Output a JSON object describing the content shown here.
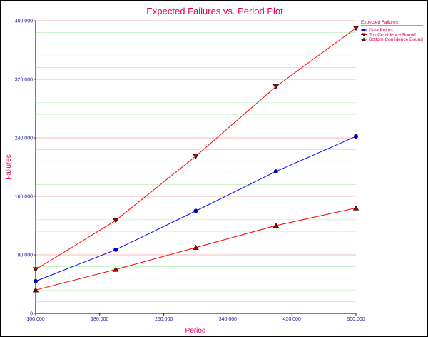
{
  "chart_data": {
    "type": "line",
    "title": "Expected Failures vs. Period Plot",
    "xlabel": "Period",
    "ylabel": "Failures",
    "xlim": [
      100,
      500
    ],
    "ylim": [
      0,
      400
    ],
    "x_ticks": [
      100,
      180,
      260,
      340,
      420,
      500
    ],
    "y_ticks": [
      0,
      80,
      160,
      240,
      320,
      400
    ],
    "x_tick_labels": [
      "100.000",
      "180.000",
      "260.000",
      "340.000",
      "420.000",
      "500.000"
    ],
    "y_tick_labels": [
      "0",
      "80.000",
      "160.000",
      "240.000",
      "320.000",
      "400.000"
    ],
    "grid": {
      "major": true,
      "minor": true,
      "major_color": "#f4a0a0",
      "minor_color": "#b8f0b8"
    },
    "legend": {
      "title": "Expected Failures",
      "position": "top-right",
      "entries": [
        "Data Points",
        "Top Confidence Bound",
        "Bottom Confidence Bound"
      ]
    },
    "series": [
      {
        "name": "Data Points",
        "marker": "circle",
        "color": "#0000ff",
        "marker_color": "#0000cc",
        "x": [
          100,
          200,
          300,
          400,
          500
        ],
        "y": [
          44,
          87,
          140,
          194,
          242
        ]
      },
      {
        "name": "Top Confidence Bound",
        "marker": "triangle-down",
        "color": "#ff0000",
        "marker_color": "#aa0000",
        "x": [
          100,
          200,
          300,
          400,
          500
        ],
        "y": [
          60,
          127,
          215,
          310,
          390
        ]
      },
      {
        "name": "Bottom Confidence Bound",
        "marker": "triangle-up",
        "color": "#ff0000",
        "marker_color": "#aa0000",
        "x": [
          100,
          200,
          300,
          400,
          500
        ],
        "y": [
          32,
          60,
          90,
          120,
          144
        ]
      }
    ],
    "colors": {
      "title": "#e8004a",
      "axis_title": "#e8004a",
      "tick_label": "#1a1aa0",
      "axis": "#000000"
    }
  }
}
